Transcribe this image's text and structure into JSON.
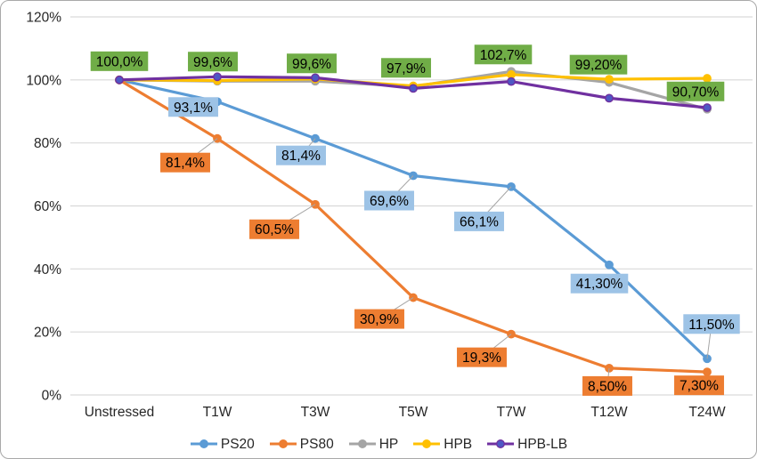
{
  "chart_data": {
    "type": "line",
    "title": "",
    "xlabel": "",
    "ylabel": "",
    "ylim": [
      0,
      120
    ],
    "grid": true,
    "legend_position": "bottom",
    "y_tick_labels": [
      "120%",
      "100%",
      "80%",
      "60%",
      "40%",
      "20%",
      "0%"
    ],
    "y_tick_values": [
      120,
      100,
      80,
      60,
      40,
      20,
      0
    ],
    "categories": [
      "Unstressed",
      "T1W",
      "T3W",
      "T5W",
      "T7W",
      "T12W",
      "T24W"
    ],
    "series": [
      {
        "name": "PS20",
        "color": "#5B9BD5",
        "marker_fill": "#5B9BD5",
        "label_fill": "#9DC3E6",
        "values": [
          100,
          93.1,
          81.4,
          69.6,
          66.1,
          41.3,
          11.5
        ],
        "labels": [
          {
            "i": 1,
            "text": "93,1%",
            "dx": -27,
            "dy": 6,
            "leader": false
          },
          {
            "i": 2,
            "text": "81,4%",
            "dx": -16,
            "dy": 19,
            "leader": true
          },
          {
            "i": 3,
            "text": "69,6%",
            "dx": -27,
            "dy": 28,
            "leader": true
          },
          {
            "i": 4,
            "text": "66,1%",
            "dx": -36,
            "dy": 39,
            "leader": true
          },
          {
            "i": 5,
            "text": "41,30%",
            "dx": -11,
            "dy": 21,
            "leader": false
          },
          {
            "i": 6,
            "text": "11,50%",
            "dx": 5,
            "dy": -39,
            "leader": true
          }
        ]
      },
      {
        "name": "PS80",
        "color": "#ED7D31",
        "marker_fill": "#ED7D31",
        "label_fill": "#ED7D31",
        "values": [
          100,
          81.4,
          60.5,
          30.9,
          19.3,
          8.5,
          7.3
        ],
        "labels": [
          {
            "i": 1,
            "text": "81,4%",
            "dx": -36,
            "dy": 27,
            "leader": true
          },
          {
            "i": 2,
            "text": "60,5%",
            "dx": -46,
            "dy": 28,
            "leader": true
          },
          {
            "i": 3,
            "text": "30,9%",
            "dx": -38,
            "dy": 24,
            "leader": true
          },
          {
            "i": 4,
            "text": "19,3%",
            "dx": -33,
            "dy": 26,
            "leader": true
          },
          {
            "i": 5,
            "text": "8,50%",
            "dx": -2,
            "dy": 20,
            "leader": true
          },
          {
            "i": 6,
            "text": "7,30%",
            "dx": -9,
            "dy": 15,
            "leader": false
          }
        ]
      },
      {
        "name": "HP",
        "color": "#A5A5A5",
        "marker_fill": "#A5A5A5",
        "label_fill": "#70AD47",
        "values": [
          100,
          99.6,
          99.6,
          97.9,
          102.7,
          99.2,
          90.7
        ],
        "labels": [
          {
            "i": 0,
            "text": "100,0%",
            "dx": 0,
            "dy": -21,
            "leader": false
          },
          {
            "i": 1,
            "text": "99,6%",
            "dx": -5,
            "dy": -22,
            "leader": false
          },
          {
            "i": 2,
            "text": "99,6%",
            "dx": -4,
            "dy": -20,
            "leader": false
          },
          {
            "i": 3,
            "text": "97,9%",
            "dx": -8,
            "dy": -21,
            "leader": false
          },
          {
            "i": 4,
            "text": "102,7%",
            "dx": -9,
            "dy": -19,
            "leader": false
          },
          {
            "i": 5,
            "text": "99,20%",
            "dx": -12,
            "dy": -20,
            "leader": false
          },
          {
            "i": 6,
            "text": "90,70%",
            "dx": -13,
            "dy": -20,
            "leader": false
          }
        ]
      },
      {
        "name": "HPB",
        "color": "#FFC000",
        "marker_fill": "#FFC000",
        "label_fill": "#FFC000",
        "values": [
          100,
          99.8,
          100.3,
          98.1,
          101.7,
          100.2,
          100.5
        ],
        "labels": []
      },
      {
        "name": "HPB-LB",
        "color": "#7030A0",
        "marker_fill": "#4E58C4",
        "label_fill": "#7030A0",
        "values": [
          100,
          101.0,
          100.7,
          97.3,
          99.5,
          94.2,
          91.2
        ],
        "labels": []
      }
    ],
    "style": {
      "gridline_color": "#D9D9D9",
      "axis_text_color": "#262626",
      "data_label_text_color": "#000000",
      "leader_line_color": "#A6A6A6",
      "background": "#FFFFFF"
    }
  }
}
